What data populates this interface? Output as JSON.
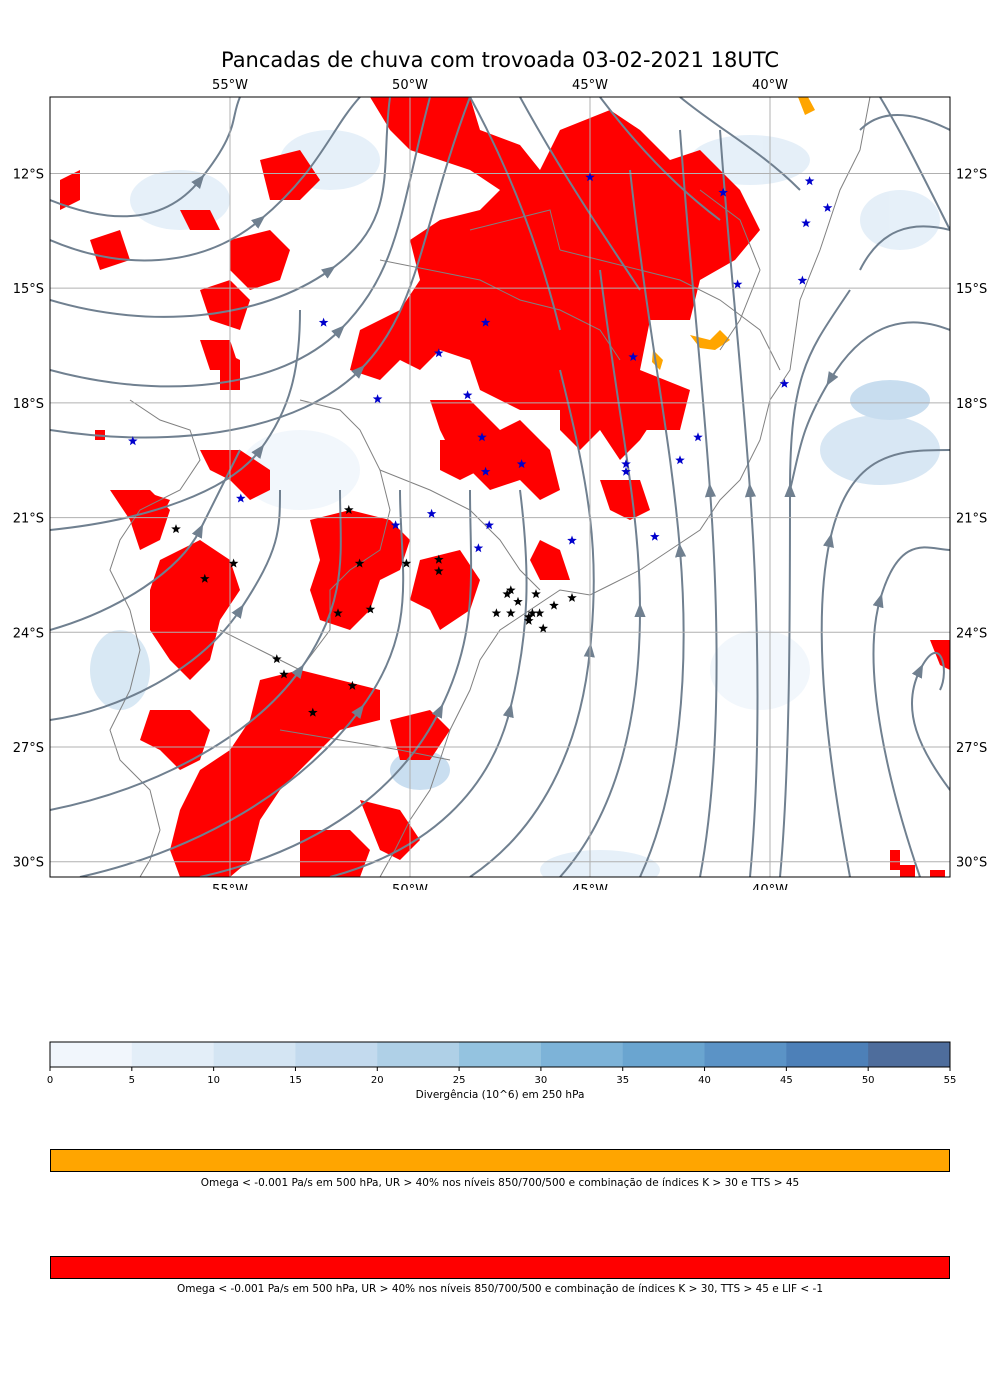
{
  "title": "Pancadas de chuva com trovoada 03-02-2021 18UTC",
  "map": {
    "lon_labels": [
      "55°W",
      "50°W",
      "45°W",
      "40°W"
    ],
    "lat_labels": [
      "12°S",
      "15°S",
      "18°S",
      "21°S",
      "24°S",
      "27°S",
      "30°S"
    ],
    "lon_values": [
      -55,
      -50,
      -45,
      -40
    ],
    "lat_values": [
      -12,
      -15,
      -18,
      -21,
      -24,
      -27,
      -30
    ],
    "extent": {
      "lon_min": -60,
      "lon_max": -35,
      "lat_min": -30.4,
      "lat_max": -10
    },
    "gridlines": true,
    "blue_stars": [
      [
        -45.0,
        -12.1
      ],
      [
        -41.3,
        -12.5
      ],
      [
        -38.9,
        -12.2
      ],
      [
        -39.0,
        -13.3
      ],
      [
        -38.4,
        -12.9
      ],
      [
        -39.1,
        -14.8
      ],
      [
        -40.9,
        -14.9
      ],
      [
        -52.4,
        -15.9
      ],
      [
        -47.9,
        -15.9
      ],
      [
        -49.2,
        -16.7
      ],
      [
        -43.8,
        -16.8
      ],
      [
        -50.9,
        -17.9
      ],
      [
        -48.4,
        -17.8
      ],
      [
        -39.6,
        -17.5
      ],
      [
        -57.7,
        -19.0
      ],
      [
        -48.0,
        -18.9
      ],
      [
        -42.0,
        -18.9
      ],
      [
        -42.5,
        -19.5
      ],
      [
        -46.9,
        -19.6
      ],
      [
        -47.9,
        -19.8
      ],
      [
        -44.0,
        -19.6
      ],
      [
        -44.0,
        -19.8
      ],
      [
        -54.7,
        -20.5
      ],
      [
        -49.4,
        -20.9
      ],
      [
        -50.4,
        -21.2
      ],
      [
        -47.8,
        -21.2
      ],
      [
        -45.5,
        -21.6
      ],
      [
        -43.2,
        -21.5
      ],
      [
        -48.1,
        -21.8
      ]
    ],
    "black_stars": [
      [
        -56.5,
        -21.3
      ],
      [
        -51.7,
        -20.8
      ],
      [
        -54.9,
        -22.2
      ],
      [
        -51.4,
        -22.2
      ],
      [
        -50.1,
        -22.2
      ],
      [
        -49.2,
        -22.1
      ],
      [
        -49.2,
        -22.4
      ],
      [
        -55.7,
        -22.6
      ],
      [
        -47.2,
        -22.9
      ],
      [
        -47.3,
        -23.0
      ],
      [
        -46.5,
        -23.0
      ],
      [
        -47.0,
        -23.2
      ],
      [
        -45.5,
        -23.1
      ],
      [
        -46.0,
        -23.3
      ],
      [
        -51.1,
        -23.4
      ],
      [
        -52.0,
        -23.5
      ],
      [
        -47.6,
        -23.5
      ],
      [
        -47.2,
        -23.5
      ],
      [
        -46.7,
        -23.6
      ],
      [
        -46.6,
        -23.5
      ],
      [
        -46.4,
        -23.5
      ],
      [
        -46.7,
        -23.7
      ],
      [
        -46.3,
        -23.9
      ],
      [
        -53.7,
        -24.7
      ],
      [
        -53.5,
        -25.1
      ],
      [
        -51.6,
        -25.4
      ],
      [
        -52.7,
        -26.1
      ]
    ]
  },
  "colorbar_divergence": {
    "ticks": [
      "0",
      "5",
      "10",
      "15",
      "20",
      "25",
      "30",
      "35",
      "40",
      "45",
      "50",
      "55"
    ],
    "colors": [
      "#f1f6fc",
      "#e3eef8",
      "#d4e5f3",
      "#c3daee",
      "#afd0e7",
      "#94c3e0",
      "#7db3d8",
      "#6aa5d0",
      "#5b93c6",
      "#4d80b8",
      "#4e6d9c"
    ],
    "label": "Divergência (10^6) em 250 hPa"
  },
  "legend_orange": {
    "color": "#ffa500",
    "label": "Omega < -0.001 Pa/s em 500 hPa, UR > 40% nos níveis 850/700/500 e combinação de índices K > 30 e TTS > 45"
  },
  "legend_red": {
    "color": "#ff0000",
    "label": "Omega < -0.001 Pa/s em 500 hPa, UR > 40% nos níveis 850/700/500 e combinação de índices K > 30, TTS > 45 e LIF < -1"
  }
}
